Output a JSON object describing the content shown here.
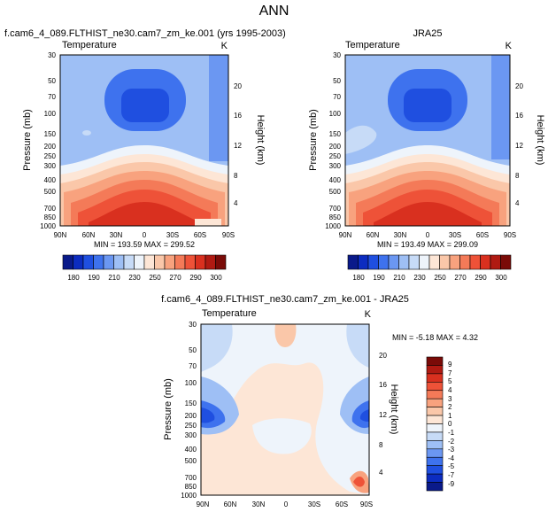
{
  "figure": {
    "title": "ANN"
  },
  "chart_data": [
    {
      "type": "heatmap",
      "title": "f.cam6_4_089.FLTHIST_ne30.cam7_zm_ke.001 (yrs 1995-2003)",
      "variable": "Temperature",
      "units": "K",
      "stats": "MIN = 193.59  MAX = 299.52",
      "xlabel": "",
      "ylabel": "Pressure (mb)",
      "y2label": "Height (km)",
      "x_ticks": [
        "90N",
        "60N",
        "30N",
        "0",
        "30S",
        "60S",
        "90S"
      ],
      "y_ticks": [
        "30",
        "50",
        "70",
        "100",
        "150",
        "200",
        "250",
        "300",
        "400",
        "500",
        "700",
        "850",
        "1000"
      ],
      "y2_ticks": [
        "20",
        "16",
        "12",
        "8",
        "4"
      ],
      "colorbar_labels": [
        "180",
        "190",
        "210",
        "230",
        "250",
        "270",
        "290",
        "300"
      ],
      "colorbar_colors": [
        "#0a1a8a",
        "#0c2cc0",
        "#1f4fe0",
        "#3e72ee",
        "#6b97f2",
        "#9ebff5",
        "#c7dbf7",
        "#eef4fb",
        "#fde6d6",
        "#fac7a9",
        "#f8a27e",
        "#f47a58",
        "#ee5238",
        "#d9301f",
        "#b01a12",
        "#7a0b08"
      ]
    },
    {
      "type": "heatmap",
      "title": "JRA25",
      "variable": "Temperature",
      "units": "K",
      "stats": "MIN = 193.49  MAX = 299.09",
      "xlabel": "",
      "ylabel": "Pressure (mb)",
      "y2label": "Height (km)",
      "x_ticks": [
        "90N",
        "60N",
        "30N",
        "0",
        "30S",
        "60S",
        "90S"
      ],
      "y_ticks": [
        "30",
        "50",
        "70",
        "100",
        "150",
        "200",
        "250",
        "300",
        "400",
        "500",
        "700",
        "850",
        "1000"
      ],
      "y2_ticks": [
        "20",
        "16",
        "12",
        "8",
        "4"
      ],
      "colorbar_labels": [
        "180",
        "190",
        "210",
        "230",
        "250",
        "270",
        "290",
        "300"
      ],
      "colorbar_colors": [
        "#0a1a8a",
        "#0c2cc0",
        "#1f4fe0",
        "#3e72ee",
        "#6b97f2",
        "#9ebff5",
        "#c7dbf7",
        "#eef4fb",
        "#fde6d6",
        "#fac7a9",
        "#f8a27e",
        "#f47a58",
        "#ee5238",
        "#d9301f",
        "#b01a12",
        "#7a0b08"
      ]
    },
    {
      "type": "heatmap",
      "title": "f.cam6_4_089.FLTHIST_ne30.cam7_zm_ke.001 - JRA25",
      "variable": "Temperature",
      "units": "K",
      "stats": "MIN = -5.18  MAX =  4.32",
      "xlabel": "",
      "ylabel": "Pressure (mb)",
      "y2label": "Height (km)",
      "x_ticks": [
        "90N",
        "60N",
        "30N",
        "0",
        "30S",
        "60S",
        "90S"
      ],
      "y_ticks": [
        "30",
        "50",
        "70",
        "100",
        "150",
        "200",
        "250",
        "300",
        "400",
        "500",
        "700",
        "850",
        "1000"
      ],
      "y2_ticks": [
        "20",
        "16",
        "12",
        "8",
        "4"
      ],
      "colorbar_labels": [
        "9",
        "7",
        "5",
        "4",
        "3",
        "2",
        "1",
        "0",
        "-1",
        "-2",
        "-3",
        "-4",
        "-5",
        "-7",
        "-9"
      ],
      "colorbar_colors": [
        "#7a0b08",
        "#b01a12",
        "#d9301f",
        "#ee5238",
        "#f47a58",
        "#f8a27e",
        "#fac7a9",
        "#fde6d6",
        "#eef4fb",
        "#c7dbf7",
        "#9ebff5",
        "#6b97f2",
        "#3e72ee",
        "#1f4fe0",
        "#0c2cc0",
        "#0a1a8a"
      ]
    }
  ]
}
